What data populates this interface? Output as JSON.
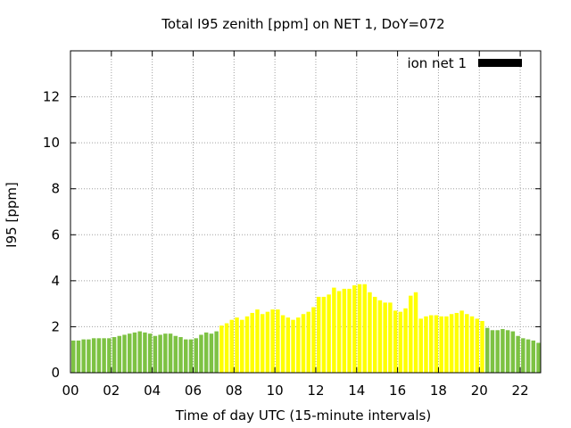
{
  "chart_data": {
    "type": "bar",
    "title": "Total I95 zenith [ppm] on NET 1, DoY=072",
    "xlabel": "Time of day UTC (15-minute intervals)",
    "ylabel": "I95 [ppm]",
    "xlim": [
      0,
      23
    ],
    "ylim": [
      0,
      14
    ],
    "x_ticks": [
      "00",
      "02",
      "04",
      "06",
      "08",
      "10",
      "12",
      "14",
      "16",
      "18",
      "20",
      "22"
    ],
    "y_ticks": [
      "0",
      "2",
      "4",
      "6",
      "8",
      "10",
      "12"
    ],
    "grid": true,
    "legend": {
      "position": "top-right",
      "entries": [
        "ion net 1"
      ],
      "swatch_color": "#000000"
    },
    "bar_colors": {
      "night": "#7dc243",
      "day": "#ffff00"
    },
    "bar_interval_hours": 0.25,
    "series": [
      {
        "name": "ion net 1",
        "x": [
          0.0,
          0.25,
          0.5,
          0.75,
          1.0,
          1.25,
          1.5,
          1.75,
          2.0,
          2.25,
          2.5,
          2.75,
          3.0,
          3.25,
          3.5,
          3.75,
          4.0,
          4.25,
          4.5,
          4.75,
          5.0,
          5.25,
          5.5,
          5.75,
          6.0,
          6.25,
          6.5,
          6.75,
          7.0,
          7.25,
          7.5,
          7.75,
          8.0,
          8.25,
          8.5,
          8.75,
          9.0,
          9.25,
          9.5,
          9.75,
          10.0,
          10.25,
          10.5,
          10.75,
          11.0,
          11.25,
          11.5,
          11.75,
          12.0,
          12.25,
          12.5,
          12.75,
          13.0,
          13.25,
          13.5,
          13.75,
          14.0,
          14.25,
          14.5,
          14.75,
          15.0,
          15.25,
          15.5,
          15.75,
          16.0,
          16.25,
          16.5,
          16.75,
          17.0,
          17.25,
          17.5,
          17.75,
          18.0,
          18.25,
          18.5,
          18.75,
          19.0,
          19.25,
          19.5,
          19.75,
          20.0,
          20.25,
          20.5,
          20.75,
          21.0,
          21.25,
          21.5,
          21.75,
          22.0,
          22.25,
          22.5,
          22.75
        ],
        "values": [
          1.4,
          1.4,
          1.45,
          1.45,
          1.5,
          1.5,
          1.5,
          1.5,
          1.55,
          1.6,
          1.65,
          1.7,
          1.75,
          1.8,
          1.75,
          1.7,
          1.6,
          1.65,
          1.7,
          1.7,
          1.6,
          1.55,
          1.45,
          1.45,
          1.5,
          1.65,
          1.75,
          1.7,
          1.8,
          2.05,
          2.15,
          2.3,
          2.4,
          2.3,
          2.45,
          2.6,
          2.75,
          2.55,
          2.65,
          2.75,
          2.75,
          2.5,
          2.4,
          2.3,
          2.4,
          2.55,
          2.65,
          2.85,
          3.3,
          3.3,
          3.4,
          3.7,
          3.55,
          3.65,
          3.65,
          3.8,
          3.85,
          3.85,
          3.5,
          3.3,
          3.15,
          3.05,
          3.05,
          2.7,
          2.65,
          2.8,
          3.35,
          3.5,
          2.35,
          2.45,
          2.5,
          2.5,
          2.45,
          2.45,
          2.55,
          2.6,
          2.7,
          2.55,
          2.45,
          2.35,
          2.25,
          1.95,
          1.85,
          1.85,
          1.9,
          1.85,
          1.8,
          1.6,
          1.5,
          1.45,
          1.4,
          1.3
        ],
        "day_flags": [
          0,
          0,
          0,
          0,
          0,
          0,
          0,
          0,
          0,
          0,
          0,
          0,
          0,
          0,
          0,
          0,
          0,
          0,
          0,
          0,
          0,
          0,
          0,
          0,
          0,
          0,
          0,
          0,
          0,
          1,
          1,
          1,
          1,
          1,
          1,
          1,
          1,
          1,
          1,
          1,
          1,
          1,
          1,
          1,
          1,
          1,
          1,
          1,
          1,
          1,
          1,
          1,
          1,
          1,
          1,
          1,
          1,
          1,
          1,
          1,
          1,
          1,
          1,
          1,
          1,
          1,
          1,
          1,
          1,
          1,
          1,
          1,
          1,
          1,
          1,
          1,
          1,
          1,
          1,
          1,
          1,
          0,
          0,
          0,
          0,
          0,
          0,
          0,
          0,
          0,
          0,
          0
        ]
      }
    ]
  }
}
